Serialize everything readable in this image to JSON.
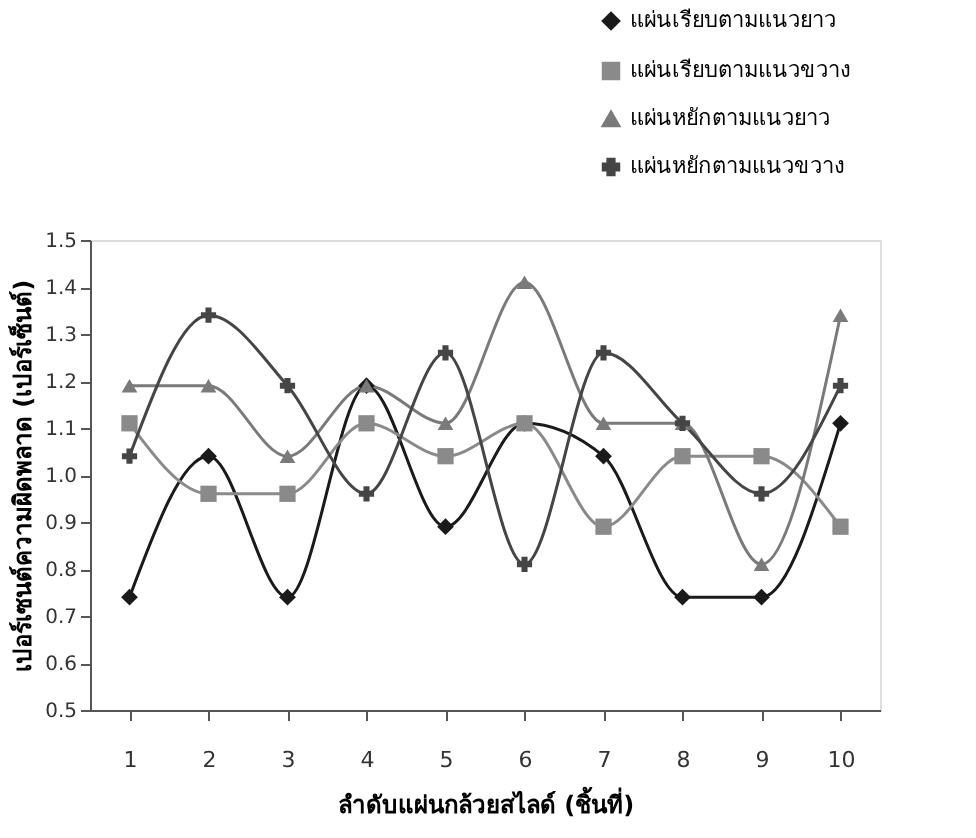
{
  "chart_data": {
    "type": "line",
    "xlabel": "ลำดับแผ่นกล้วยสไลด์ (ชิ้นที่)",
    "ylabel": "เปอร์เซนต์ความผิดพลาด (เปอร์เซ็นต์)",
    "categories": [
      "1",
      "2",
      "3",
      "4",
      "5",
      "6",
      "7",
      "8",
      "9",
      "10"
    ],
    "ylim": [
      0.5,
      1.5
    ],
    "yticks": [
      0.5,
      0.6,
      0.7,
      0.8,
      0.9,
      {
        "value": 1,
        "label": "1.0"
      },
      1.1,
      1.2,
      1.3,
      1.4,
      1.5
    ],
    "grid": false,
    "legend": "top right",
    "line_style": "solid",
    "series": [
      {
        "name": "แผ่นเรียบตามแนวยาว",
        "color": "#1a1a1a",
        "marker": "diamond",
        "values": [
          0.74,
          1.04,
          0.74,
          1.19,
          0.89,
          1.11,
          1.04,
          0.74,
          0.74,
          1.11
        ]
      },
      {
        "name": "แผ่นเรียบตามแนวขวาง",
        "color": "#8a8a8a",
        "marker": "square",
        "values": [
          1.11,
          0.96,
          0.96,
          1.11,
          1.04,
          1.11,
          0.89,
          1.04,
          1.04,
          0.89
        ]
      },
      {
        "name": "แผ่นหยักตามแนวยาว",
        "color": "#7a7a7a",
        "marker": "triangle",
        "values": [
          1.19,
          1.19,
          1.04,
          1.19,
          1.11,
          1.41,
          1.11,
          1.11,
          0.81,
          1.34
        ]
      },
      {
        "name": "แผ่นหยักตามแนวขวาง",
        "color": "#454545",
        "marker": "cross",
        "values": [
          1.04,
          1.34,
          1.19,
          0.96,
          1.26,
          0.81,
          1.26,
          1.11,
          0.96,
          1.19
        ]
      }
    ]
  }
}
